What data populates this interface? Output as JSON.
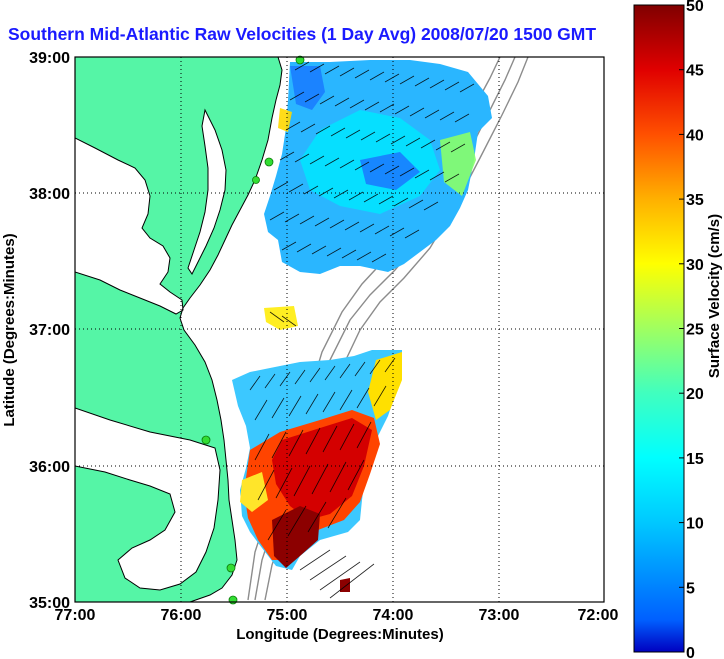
{
  "title": "Southern Mid-Atlantic Raw Velocities (1 Day Avg) 2008/07/20 1500 GMT",
  "map": {
    "xlabel": "Longitude (Degrees:Minutes)",
    "ylabel": "Latitude (Degrees:Minutes)",
    "lon_ticks": [
      "77:00",
      "76:00",
      "75:00",
      "74:00",
      "73:00",
      "72:00"
    ],
    "lat_ticks": [
      "39:00",
      "38:00",
      "37:00",
      "36:00",
      "35:00"
    ],
    "lon_range": [
      -77,
      -72
    ],
    "lat_range": [
      35,
      39
    ],
    "grid": "dotted",
    "colors": {
      "land": "#55f5a6",
      "coast": "#000000",
      "bathymetry": "#8c8c8c",
      "vectors": "#000000",
      "radar_site": "#33dd33"
    },
    "radar_sites": 6
  },
  "colorbar": {
    "label": "Surface Velocity (cm/s)",
    "ticks": [
      "50",
      "45",
      "40",
      "35",
      "30",
      "25",
      "20",
      "15",
      "10",
      "5",
      "0"
    ],
    "range": [
      0,
      50
    ],
    "colormap": "jet"
  }
}
